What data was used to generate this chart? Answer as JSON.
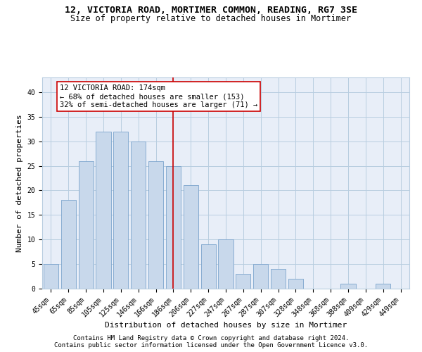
{
  "title1": "12, VICTORIA ROAD, MORTIMER COMMON, READING, RG7 3SE",
  "title2": "Size of property relative to detached houses in Mortimer",
  "xlabel": "Distribution of detached houses by size in Mortimer",
  "ylabel": "Number of detached properties",
  "categories": [
    "45sqm",
    "65sqm",
    "85sqm",
    "105sqm",
    "125sqm",
    "146sqm",
    "166sqm",
    "186sqm",
    "206sqm",
    "227sqm",
    "247sqm",
    "267sqm",
    "287sqm",
    "307sqm",
    "328sqm",
    "348sqm",
    "368sqm",
    "388sqm",
    "409sqm",
    "429sqm",
    "449sqm"
  ],
  "values": [
    5,
    18,
    26,
    32,
    32,
    30,
    26,
    25,
    21,
    9,
    10,
    3,
    5,
    4,
    2,
    0,
    0,
    1,
    0,
    1,
    0
  ],
  "bar_color": "#c8d8eb",
  "bar_edge_color": "#7ba4cc",
  "red_line_x": 7.0,
  "annotation_text": "12 VICTORIA ROAD: 174sqm\n← 68% of detached houses are smaller (153)\n32% of semi-detached houses are larger (71) →",
  "annotation_box_color": "white",
  "annotation_box_edge_color": "#cc0000",
  "red_line_color": "#cc0000",
  "ylim": [
    0,
    43
  ],
  "yticks": [
    0,
    5,
    10,
    15,
    20,
    25,
    30,
    35,
    40
  ],
  "grid_color": "#b8cde0",
  "background_color": "#e8eef8",
  "footnote1": "Contains HM Land Registry data © Crown copyright and database right 2024.",
  "footnote2": "Contains public sector information licensed under the Open Government Licence v3.0.",
  "title_fontsize": 9.5,
  "subtitle_fontsize": 8.5,
  "axis_label_fontsize": 8,
  "tick_fontsize": 7,
  "annotation_fontsize": 7.5,
  "footnote_fontsize": 6.5
}
